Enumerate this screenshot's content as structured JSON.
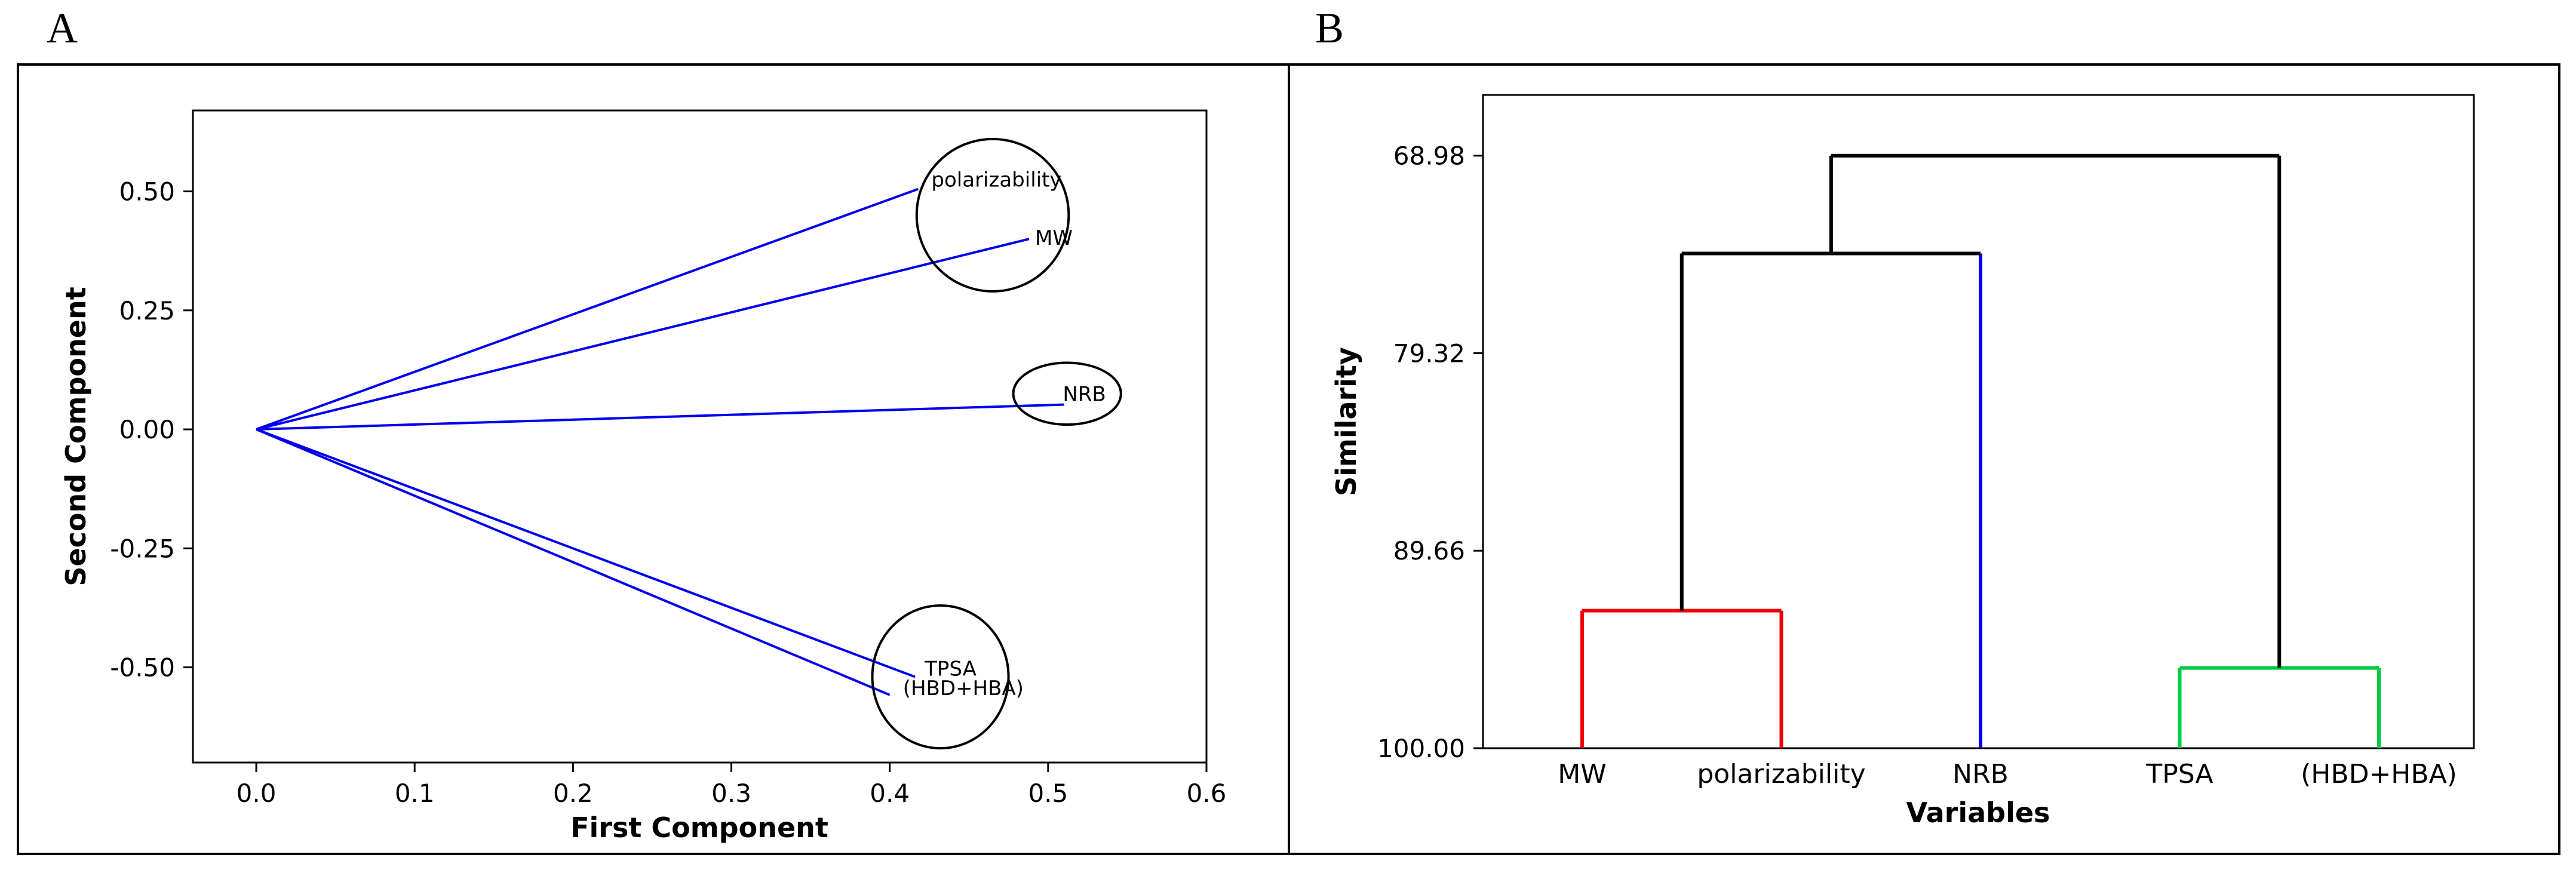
{
  "panels": {
    "left_letter": "A",
    "right_letter": "B"
  },
  "chart_data": [
    {
      "type": "scatter",
      "subtype": "loading-plot",
      "title": "",
      "xlabel": "First Component",
      "ylabel": "Second Component",
      "xlim": [
        -0.04,
        0.6
      ],
      "ylim": [
        -0.7,
        0.67
      ],
      "xticks": [
        "0.0",
        "0.1",
        "0.2",
        "0.3",
        "0.4",
        "0.5",
        "0.6"
      ],
      "yticks": [
        "0.50",
        "0.25",
        "0.00",
        "-0.25",
        "-0.50"
      ],
      "line_color": "#0000ee",
      "vectors": [
        {
          "label": "polarizability",
          "x": 0.418,
          "y": 0.505
        },
        {
          "label": "MW",
          "x": 0.488,
          "y": 0.4
        },
        {
          "label": "NRB",
          "x": 0.51,
          "y": 0.052
        },
        {
          "label": "TPSA",
          "x": 0.416,
          "y": -0.52
        },
        {
          "label": "(HBD+HBA)",
          "x": 0.4,
          "y": -0.558
        }
      ],
      "groups": [
        {
          "members": [
            "polarizability",
            "MW"
          ],
          "cx": 0.465,
          "cy": 0.45,
          "rx": 0.048,
          "ry": 0.16
        },
        {
          "members": [
            "NRB"
          ],
          "cx": 0.512,
          "cy": 0.075,
          "rx": 0.034,
          "ry": 0.065
        },
        {
          "members": [
            "TPSA",
            "(HBD+HBA)"
          ],
          "cx": 0.432,
          "cy": -0.52,
          "rx": 0.043,
          "ry": 0.15
        }
      ]
    },
    {
      "type": "dendrogram",
      "title": "",
      "xlabel": "Variables",
      "ylabel": "Similarity",
      "ylim": [
        65.8,
        100.0
      ],
      "yticks": [
        "68.98",
        "79.32",
        "89.66",
        "100.00"
      ],
      "leaves": [
        "MW",
        "polarizability",
        "NRB",
        "TPSA",
        "(HBD+HBA)"
      ],
      "merges": [
        {
          "left": 0,
          "right": 1,
          "similarity": 92.8,
          "color": "#ee0000"
        },
        {
          "left": 3,
          "right": 4,
          "similarity": 95.8,
          "color": "#00cc44"
        },
        {
          "left": 5,
          "right": 2,
          "similarity": 74.1,
          "color": "#000000"
        },
        {
          "left": 7,
          "right": 6,
          "similarity": 68.98,
          "color": "#000000"
        }
      ],
      "leaf_colors": [
        "#ee0000",
        "#ee0000",
        "#0000ee",
        "#00cc44",
        "#00cc44"
      ]
    }
  ]
}
